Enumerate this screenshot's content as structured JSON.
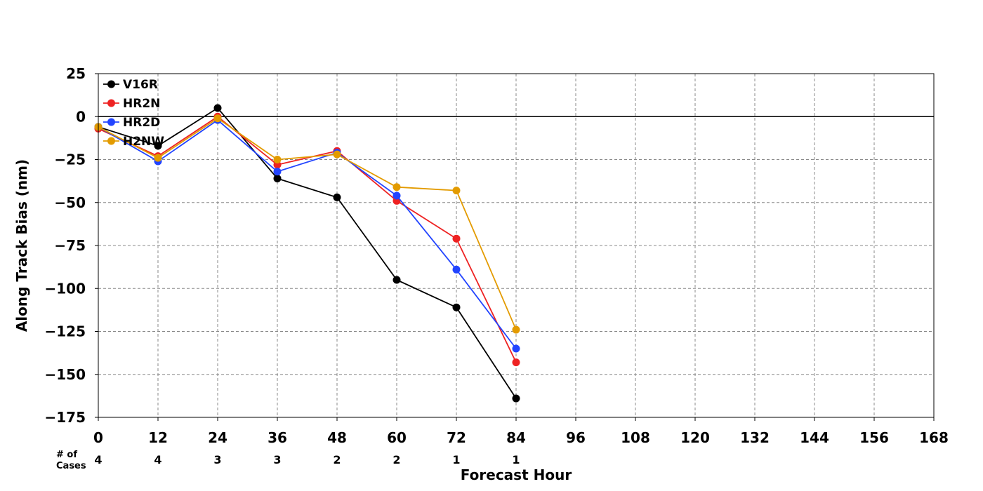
{
  "chart_data": {
    "type": "line",
    "xlabel": "Forecast Hour",
    "ylabel": "Along Track Bias (nm)",
    "xlim": [
      0,
      168
    ],
    "ylim": [
      -175,
      25
    ],
    "xticks": [
      0,
      12,
      24,
      36,
      48,
      60,
      72,
      84,
      96,
      108,
      120,
      132,
      144,
      156,
      168
    ],
    "yticks": [
      25,
      0,
      -25,
      -50,
      -75,
      -100,
      -125,
      -150,
      -175
    ],
    "ytick_labels": [
      "25",
      "0",
      "−25",
      "−50",
      "−75",
      "−100",
      "−125",
      "−150",
      "−175"
    ],
    "grid": true,
    "zero_line": true,
    "legend_position": "top-left",
    "x": [
      0,
      12,
      24,
      36,
      48,
      60,
      72,
      84
    ],
    "series": [
      {
        "name": "V16R",
        "color": "#000000",
        "values": [
          -6,
          -17,
          5,
          -36,
          -47,
          -95,
          -111,
          -164
        ]
      },
      {
        "name": "HR2N",
        "color": "#ee2222",
        "values": [
          -7,
          -23,
          0,
          -28,
          -20,
          -49,
          -71,
          -143
        ]
      },
      {
        "name": "HR2D",
        "color": "#2244ff",
        "values": [
          -6,
          -26,
          -2,
          -32,
          -21,
          -46,
          -89,
          -135
        ]
      },
      {
        "name": "H2NW",
        "color": "#e39b00",
        "values": [
          -6,
          -24,
          -1,
          -25,
          -22,
          -41,
          -43,
          -124
        ]
      }
    ],
    "cases": {
      "label_line1": "# of",
      "label_line2": "Cases",
      "x": [
        0,
        12,
        24,
        36,
        48,
        60,
        72,
        84
      ],
      "values": [
        "4",
        "4",
        "3",
        "3",
        "2",
        "2",
        "1",
        "1"
      ]
    }
  }
}
